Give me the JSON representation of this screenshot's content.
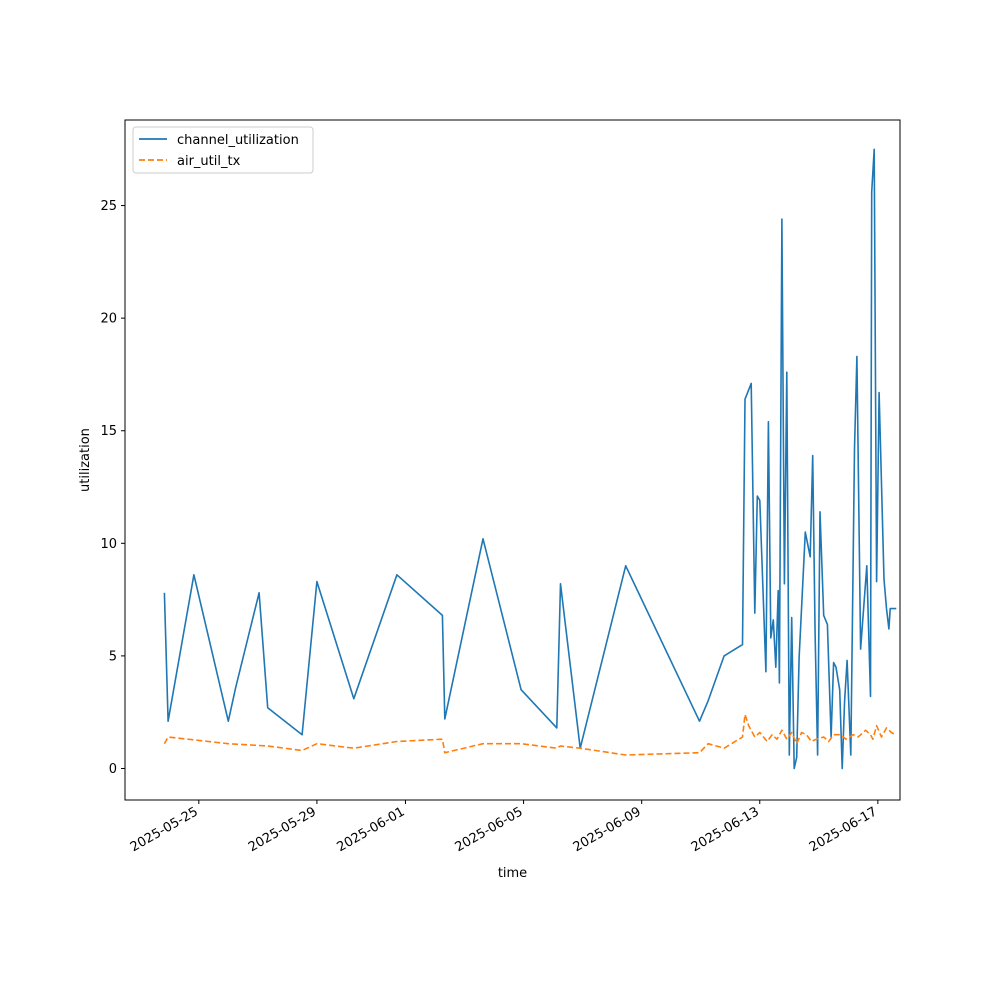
{
  "chart_data": {
    "type": "line",
    "title": "",
    "xlabel": "time",
    "ylabel": "utilization",
    "xlim": [
      "2025-05-22T12:00",
      "2025-06-17T18:00"
    ],
    "ylim": [
      -1.4,
      28.8
    ],
    "x_ticks": [
      "2025-05-25",
      "2025-05-29",
      "2025-06-01",
      "2025-06-05",
      "2025-06-09",
      "2025-06-13",
      "2025-06-17"
    ],
    "y_ticks": [
      0,
      5,
      10,
      15,
      20,
      25
    ],
    "grid": false,
    "legend_position": "upper-left",
    "colors": {
      "channel_utilization": "#1f77b4",
      "air_util_tx": "#ff7f0e"
    },
    "series": [
      {
        "name": "channel_utilization",
        "color": "#1f77b4",
        "style": "solid",
        "x": [
          "2025-05-23T20:00",
          "2025-05-23T23:00",
          "2025-05-24T20:00",
          "2025-05-26T00:00",
          "2025-05-26T06:00",
          "2025-05-27T01:00",
          "2025-05-27T08:00",
          "2025-05-28T12:00",
          "2025-05-29T00:00",
          "2025-05-30T06:00",
          "2025-05-31T17:00",
          "2025-06-02T06:00",
          "2025-06-02T08:00",
          "2025-06-03T15:00",
          "2025-06-04T22:00",
          "2025-06-06T03:00",
          "2025-06-06T06:00",
          "2025-06-06T22:00",
          "2025-06-08T11:00",
          "2025-06-10T23:00",
          "2025-06-11T06:00",
          "2025-06-11T19:00",
          "2025-06-12T10:00",
          "2025-06-12T12:00",
          "2025-06-12T17:00",
          "2025-06-12T20:00",
          "2025-06-12T22:00",
          "2025-06-13T00:00",
          "2025-06-13T05:00",
          "2025-06-13T07:00",
          "2025-06-13T09:00",
          "2025-06-13T11:00",
          "2025-06-13T13:00",
          "2025-06-13T15:00",
          "2025-06-13T16:00",
          "2025-06-13T18:00",
          "2025-06-13T20:00",
          "2025-06-13T22:00",
          "2025-06-14T00:00",
          "2025-06-14T02:00",
          "2025-06-14T04:00",
          "2025-06-14T06:00",
          "2025-06-14T08:00",
          "2025-06-14T13:00",
          "2025-06-14T17:00",
          "2025-06-14T19:00",
          "2025-06-14T21:00",
          "2025-06-14T23:00",
          "2025-06-15T01:00",
          "2025-06-15T04:00",
          "2025-06-15T07:00",
          "2025-06-15T10:00",
          "2025-06-15T12:00",
          "2025-06-15T14:00",
          "2025-06-15T17:00",
          "2025-06-15T19:00",
          "2025-06-15T21:00",
          "2025-06-15T23:00",
          "2025-06-16T02:00",
          "2025-06-16T05:00",
          "2025-06-16T07:00",
          "2025-06-16T10:00",
          "2025-06-16T15:00",
          "2025-06-16T18:00",
          "2025-06-16T19:00",
          "2025-06-16T21:00",
          "2025-06-16T23:00",
          "2025-06-17T01:00",
          "2025-06-17T05:00",
          "2025-06-17T07:00",
          "2025-06-17T09:00",
          "2025-06-17T10:00",
          "2025-06-17T12:00",
          "2025-06-17T13:00",
          "2025-06-17T15:00"
        ],
        "y": [
          7.8,
          2.1,
          8.6,
          2.1,
          3.6,
          7.8,
          2.7,
          1.5,
          8.3,
          3.1,
          8.6,
          6.8,
          2.2,
          10.2,
          3.5,
          1.8,
          8.2,
          0.9,
          9.0,
          2.1,
          3.0,
          5.0,
          5.5,
          16.4,
          17.1,
          6.9,
          12.1,
          11.9,
          4.3,
          15.4,
          5.8,
          6.6,
          4.5,
          7.9,
          3.8,
          24.4,
          8.2,
          17.6,
          0.6,
          6.7,
          0.0,
          0.5,
          4.9,
          10.5,
          9.4,
          13.9,
          6.0,
          0.6,
          11.4,
          6.8,
          6.4,
          1.4,
          4.7,
          4.5,
          3.5,
          0.0,
          3.0,
          4.8,
          0.6,
          14.2,
          18.3,
          5.3,
          9.0,
          3.2,
          25.6,
          27.5,
          8.3,
          16.7,
          8.4,
          7.1,
          6.2,
          7.1,
          7.1,
          7.1,
          7.1
        ]
      },
      {
        "name": "air_util_tx",
        "color": "#ff7f0e",
        "style": "dashed",
        "x": [
          "2025-05-23T20:00",
          "2025-05-23T23:00",
          "2025-05-26T00:00",
          "2025-05-27T08:00",
          "2025-05-28T12:00",
          "2025-05-29T00:00",
          "2025-05-30T06:00",
          "2025-05-31T17:00",
          "2025-06-02T06:00",
          "2025-06-02T08:00",
          "2025-06-03T15:00",
          "2025-06-04T22:00",
          "2025-06-06T03:00",
          "2025-06-06T06:00",
          "2025-06-06T22:00",
          "2025-06-08T11:00",
          "2025-06-10T23:00",
          "2025-06-11T06:00",
          "2025-06-11T19:00",
          "2025-06-12T10:00",
          "2025-06-12T12:00",
          "2025-06-12T15:00",
          "2025-06-12T20:00",
          "2025-06-13T00:00",
          "2025-06-13T06:00",
          "2025-06-13T10:00",
          "2025-06-13T14:00",
          "2025-06-13T18:00",
          "2025-06-13T22:00",
          "2025-06-14T02:00",
          "2025-06-14T06:00",
          "2025-06-14T10:00",
          "2025-06-14T14:00",
          "2025-06-14T18:00",
          "2025-06-14T22:00",
          "2025-06-15T04:00",
          "2025-06-15T08:00",
          "2025-06-15T12:00",
          "2025-06-15T18:00",
          "2025-06-15T22:00",
          "2025-06-16T04:00",
          "2025-06-16T08:00",
          "2025-06-16T14:00",
          "2025-06-16T18:00",
          "2025-06-16T20:00",
          "2025-06-16T23:00",
          "2025-06-17T03:00",
          "2025-06-17T07:00",
          "2025-06-17T11:00",
          "2025-06-17T14:00"
        ],
        "y": [
          1.1,
          1.4,
          1.1,
          1.0,
          0.8,
          1.1,
          0.9,
          1.2,
          1.3,
          0.7,
          1.1,
          1.1,
          0.9,
          1.0,
          0.9,
          0.6,
          0.7,
          1.1,
          0.9,
          1.4,
          2.4,
          1.9,
          1.4,
          1.6,
          1.2,
          1.5,
          1.3,
          1.7,
          1.3,
          1.6,
          1.1,
          1.6,
          1.5,
          1.2,
          1.3,
          1.4,
          1.2,
          1.5,
          1.5,
          1.3,
          1.5,
          1.4,
          1.7,
          1.5,
          1.3,
          1.9,
          1.4,
          1.8,
          1.6,
          1.5
        ]
      }
    ]
  }
}
